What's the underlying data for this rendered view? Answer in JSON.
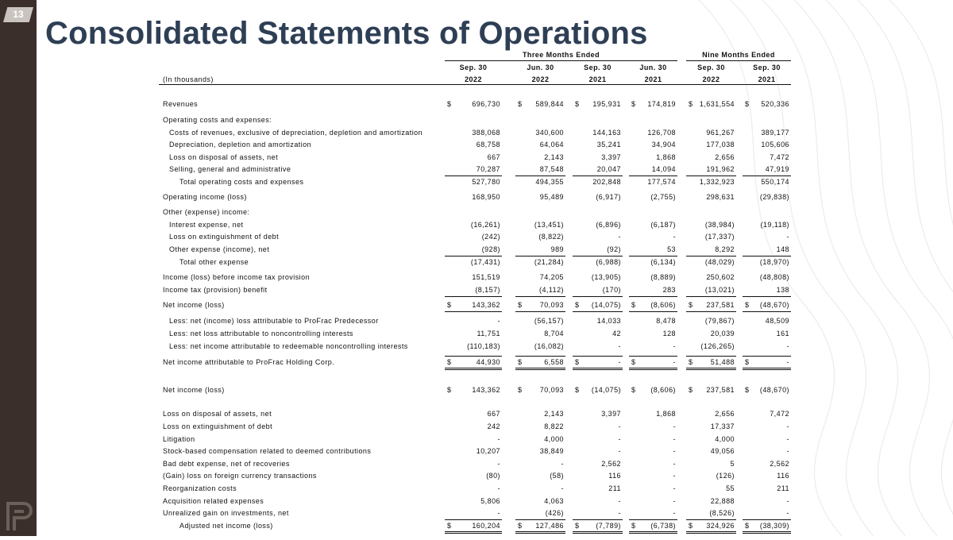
{
  "header": {
    "page_number": "13",
    "title": "Consolidated Statements of Operations"
  },
  "table": {
    "groups": [
      "Three Months Ended",
      "Nine Months Ended"
    ],
    "units": "(In thousands)",
    "columns": [
      {
        "month": "Sep. 30",
        "year": "2022"
      },
      {
        "month": "Jun. 30",
        "year": "2022"
      },
      {
        "month": "Sep. 30",
        "year": "2021"
      },
      {
        "month": "Jun. 30",
        "year": "2021"
      },
      {
        "month": "Sep. 30",
        "year": "2022"
      },
      {
        "month": "Sep. 30",
        "year": "2021"
      }
    ],
    "rows": [
      {
        "label": "Revenues",
        "currency": "$",
        "values": [
          "696,730",
          "589,844",
          "195,931",
          "174,819",
          "1,631,554",
          "520,336"
        ]
      },
      {
        "label": "Operating costs and expenses:"
      },
      {
        "label": "Costs of revenues, exclusive of depreciation, depletion and amortization",
        "values": [
          "388,068",
          "340,600",
          "144,163",
          "126,708",
          "961,267",
          "389,177"
        ]
      },
      {
        "label": "Depreciation, depletion and amortization",
        "values": [
          "68,758",
          "64,064",
          "35,241",
          "34,904",
          "177,038",
          "105,606"
        ]
      },
      {
        "label": "Loss on disposal of assets, net",
        "values": [
          "667",
          "2,143",
          "3,397",
          "1,868",
          "2,656",
          "7,472"
        ]
      },
      {
        "label": "Selling, general and administrative",
        "values": [
          "70,287",
          "87,548",
          "20,047",
          "14,094",
          "191,962",
          "47,919"
        ]
      },
      {
        "label": "Total operating costs and expenses",
        "values": [
          "527,780",
          "494,355",
          "202,848",
          "177,574",
          "1,332,923",
          "550,174"
        ]
      },
      {
        "label": "Operating income (loss)",
        "values": [
          "168,950",
          "95,489",
          "(6,917)",
          "(2,755)",
          "298,631",
          "(29,838)"
        ]
      },
      {
        "label": "Other (expense) income:"
      },
      {
        "label": "Interest expense, net",
        "values": [
          "(16,261)",
          "(13,451)",
          "(6,896)",
          "(6,187)",
          "(38,984)",
          "(19,118)"
        ]
      },
      {
        "label": "Loss on extinguishment of debt",
        "values": [
          "(242)",
          "(8,822)",
          "-",
          "-",
          "(17,337)",
          "-"
        ]
      },
      {
        "label": "Other expense (income), net",
        "values": [
          "(928)",
          "989",
          "(92)",
          "53",
          "8,292",
          "148"
        ]
      },
      {
        "label": "Total other expense",
        "values": [
          "(17,431)",
          "(21,284)",
          "(6,988)",
          "(6,134)",
          "(48,029)",
          "(18,970)"
        ]
      },
      {
        "label": "Income (loss) before income tax provision",
        "values": [
          "151,519",
          "74,205",
          "(13,905)",
          "(8,889)",
          "250,602",
          "(48,808)"
        ]
      },
      {
        "label": "Income tax (provision) benefit",
        "values": [
          "(8,157)",
          "(4,112)",
          "(170)",
          "283",
          "(13,021)",
          "138"
        ]
      },
      {
        "label": "Net income (loss)",
        "currency": "$",
        "values": [
          "143,362",
          "70,093",
          "(14,075)",
          "(8,606)",
          "237,581",
          "(48,670)"
        ]
      },
      {
        "label": "Less: net (income) loss attributable to ProFrac Predecessor",
        "values": [
          "-",
          "(56,157)",
          "14,033",
          "8,478",
          "(79,867)",
          "48,509"
        ]
      },
      {
        "label": "Less: net loss attributable to noncontrolling interests",
        "values": [
          "11,751",
          "8,704",
          "42",
          "128",
          "20,039",
          "161"
        ]
      },
      {
        "label": "Less: net income attributable to redeemable noncontrolling interests",
        "values": [
          "(110,183)",
          "(16,082)",
          "-",
          "-",
          "(126,265)",
          "-"
        ]
      },
      {
        "label": "Net income attributable to ProFrac Holding Corp.",
        "currency": "$",
        "values": [
          "44,930",
          "6,558",
          "-",
          "-",
          "51,488",
          "-"
        ]
      },
      {
        "label": "Net income (loss)",
        "currency": "$",
        "values": [
          "143,362",
          "70,093",
          "(14,075)",
          "(8,606)",
          "237,581",
          "(48,670)"
        ]
      },
      {
        "label": "Loss on disposal of assets, net",
        "values": [
          "667",
          "2,143",
          "3,397",
          "1,868",
          "2,656",
          "7,472"
        ]
      },
      {
        "label": "Loss on extinguishment of debt",
        "values": [
          "242",
          "8,822",
          "-",
          "-",
          "17,337",
          "-"
        ]
      },
      {
        "label": "Litigation",
        "values": [
          "-",
          "4,000",
          "-",
          "-",
          "4,000",
          "-"
        ]
      },
      {
        "label": "Stock-based compensation related to deemed contributions",
        "values": [
          "10,207",
          "38,849",
          "-",
          "-",
          "49,056",
          "-"
        ]
      },
      {
        "label": "Bad debt expense, net of recoveries",
        "values": [
          "-",
          "-",
          "2,562",
          "-",
          "5",
          "2,562"
        ]
      },
      {
        "label": "(Gain) loss on foreign currency transactions",
        "values": [
          "(80)",
          "(58)",
          "116",
          "-",
          "(126)",
          "116"
        ]
      },
      {
        "label": "Reorganization costs",
        "values": [
          "-",
          "-",
          "211",
          "-",
          "55",
          "211"
        ]
      },
      {
        "label": "Acquisition related expenses",
        "values": [
          "5,806",
          "4,063",
          "-",
          "-",
          "22,888",
          "-"
        ]
      },
      {
        "label": "Unrealized gain on investments, net",
        "values": [
          "-",
          "(426)",
          "-",
          "-",
          "(8,526)",
          "-"
        ]
      },
      {
        "label": "Adjusted net income (loss)",
        "currency": "$",
        "values": [
          "160,204",
          "127,486",
          "(7,789)",
          "(6,738)",
          "324,926",
          "(38,309)"
        ]
      }
    ]
  }
}
